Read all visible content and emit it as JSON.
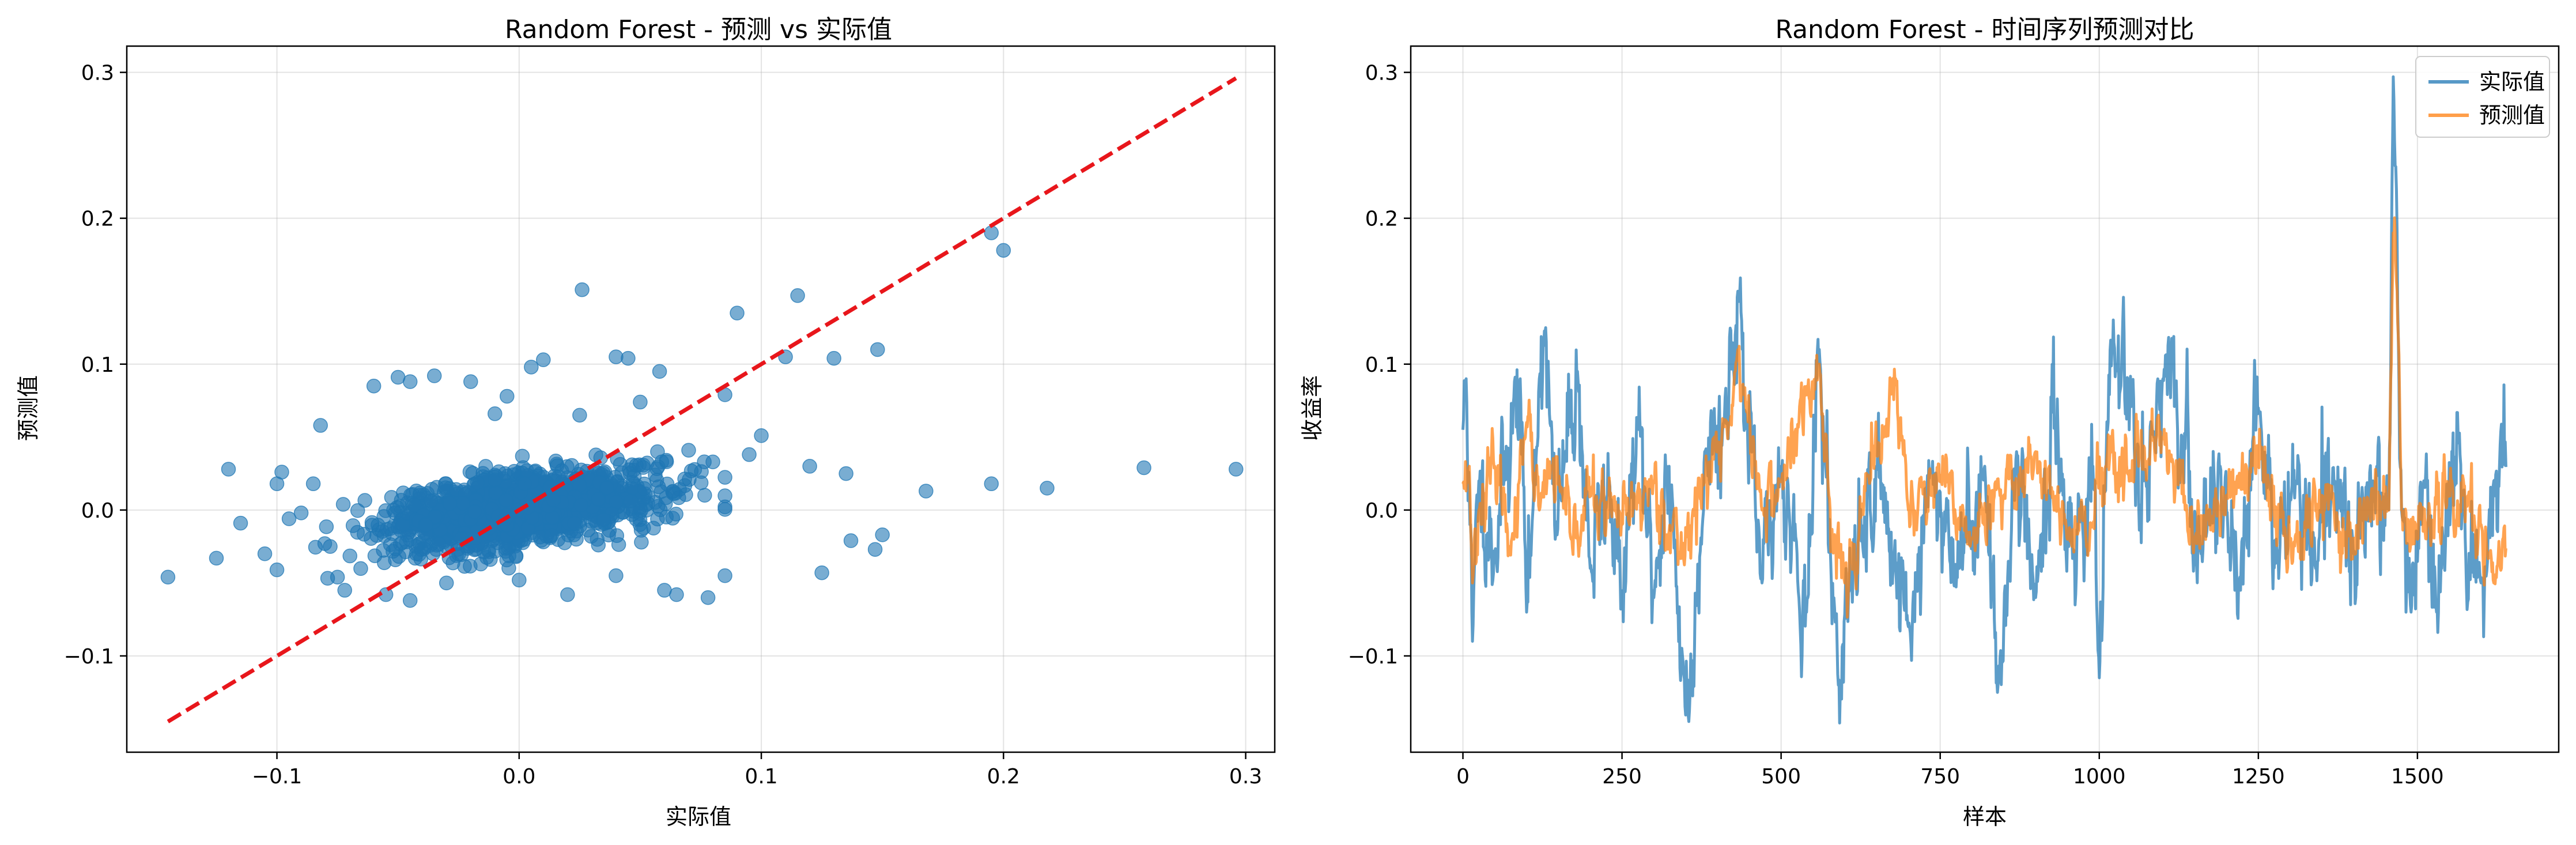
{
  "chart_data": [
    {
      "type": "scatter",
      "title": "Random Forest - 预测 vs 实际值",
      "xlabel": "实际值",
      "ylabel": "预测值",
      "xlim": [
        -0.162,
        0.312
      ],
      "ylim": [
        -0.166,
        0.318
      ],
      "xticks": [
        -0.1,
        0.0,
        0.1,
        0.2,
        0.3
      ],
      "yticks": [
        -0.1,
        0.0,
        0.1,
        0.2,
        0.3
      ],
      "xtick_labels": [
        "−0.1",
        "0.0",
        "0.1",
        "0.2",
        "0.3"
      ],
      "ytick_labels": [
        "−0.1",
        "0.0",
        "0.1",
        "0.2",
        "0.3"
      ],
      "grid": true,
      "point_color": "#1f77b4",
      "reference_line": {
        "from": [
          -0.145,
          -0.145
        ],
        "to": [
          0.296,
          0.296
        ],
        "color": "#e8161b",
        "style": "dashed"
      },
      "outlier_points": [
        [
          -0.145,
          -0.046
        ],
        [
          -0.125,
          -0.033
        ],
        [
          -0.12,
          0.028
        ],
        [
          -0.115,
          -0.009
        ],
        [
          -0.105,
          -0.03
        ],
        [
          -0.1,
          -0.041
        ],
        [
          -0.1,
          0.018
        ],
        [
          -0.098,
          0.026
        ],
        [
          -0.095,
          -0.006
        ],
        [
          -0.09,
          -0.002
        ],
        [
          -0.085,
          0.018
        ],
        [
          -0.082,
          0.058
        ],
        [
          -0.078,
          -0.025
        ],
        [
          -0.075,
          -0.046
        ],
        [
          -0.072,
          -0.055
        ],
        [
          -0.06,
          0.085
        ],
        [
          -0.05,
          0.091
        ],
        [
          -0.045,
          0.088
        ],
        [
          -0.035,
          0.092
        ],
        [
          -0.02,
          0.088
        ],
        [
          -0.005,
          0.078
        ],
        [
          0.005,
          0.098
        ],
        [
          0.01,
          0.103
        ],
        [
          0.026,
          0.151
        ],
        [
          0.04,
          0.105
        ],
        [
          0.045,
          0.104
        ],
        [
          0.058,
          0.095
        ],
        [
          0.09,
          0.135
        ],
        [
          0.115,
          0.147
        ],
        [
          0.11,
          0.105
        ],
        [
          0.13,
          0.104
        ],
        [
          0.148,
          0.11
        ],
        [
          0.1,
          0.051
        ],
        [
          0.095,
          0.038
        ],
        [
          0.12,
          0.03
        ],
        [
          0.135,
          0.025
        ],
        [
          0.125,
          -0.043
        ],
        [
          0.137,
          -0.021
        ],
        [
          0.147,
          -0.027
        ],
        [
          0.15,
          -0.017
        ],
        [
          0.168,
          0.013
        ],
        [
          0.195,
          0.018
        ],
        [
          0.218,
          0.015
        ],
        [
          0.258,
          0.029
        ],
        [
          0.296,
          0.028
        ],
        [
          0.195,
          0.19
        ],
        [
          0.2,
          0.178
        ],
        [
          0.085,
          -0.045
        ],
        [
          0.06,
          -0.055
        ],
        [
          0.078,
          -0.06
        ],
        [
          0.065,
          -0.058
        ],
        [
          0.02,
          -0.058
        ],
        [
          -0.045,
          -0.062
        ],
        [
          -0.055,
          -0.058
        ],
        [
          -0.03,
          -0.05
        ],
        [
          0.0,
          -0.048
        ],
        [
          0.04,
          -0.045
        ],
        [
          0.07,
          0.041
        ],
        [
          0.08,
          0.033
        ],
        [
          0.085,
          0.079
        ],
        [
          0.05,
          0.074
        ],
        [
          0.025,
          0.065
        ],
        [
          -0.01,
          0.066
        ]
      ],
      "cloud": {
        "n": 1450,
        "seed": 7,
        "x_mean": 0.0,
        "x_sd": 0.028,
        "slope": 0.22,
        "noise_sd": 0.012
      }
    },
    {
      "type": "line",
      "title": "Random Forest - 时间序列预测对比",
      "xlabel": "样本",
      "ylabel": "收益率",
      "xlim": [
        -82,
        1722
      ],
      "ylim": [
        -0.166,
        0.318
      ],
      "xticks": [
        0,
        250,
        500,
        750,
        1000,
        1250,
        1500
      ],
      "yticks": [
        -0.1,
        0.0,
        0.1,
        0.2,
        0.3
      ],
      "xtick_labels": [
        "0",
        "250",
        "500",
        "750",
        "1000",
        "1250",
        "1500"
      ],
      "ytick_labels": [
        "−0.1",
        "0.0",
        "0.1",
        "0.2",
        "0.3"
      ],
      "grid": true,
      "legend_position": "top-right",
      "series": [
        {
          "name": "实际值",
          "color": "#1f77b4",
          "n": 1640,
          "anchors": [
            [
              0,
              0.055
            ],
            [
              5,
              0.09
            ],
            [
              10,
              0.01
            ],
            [
              15,
              -0.09
            ],
            [
              25,
              0.02
            ],
            [
              50,
              -0.03
            ],
            [
              70,
              0.04
            ],
            [
              90,
              0.09
            ],
            [
              100,
              -0.07
            ],
            [
              110,
              0.0
            ],
            [
              120,
              0.09
            ],
            [
              130,
              0.125
            ],
            [
              145,
              -0.02
            ],
            [
              160,
              0.035
            ],
            [
              180,
              0.095
            ],
            [
              200,
              -0.04
            ],
            [
              230,
              0.02
            ],
            [
              250,
              -0.06
            ],
            [
              275,
              0.06
            ],
            [
              300,
              -0.06
            ],
            [
              320,
              0.03
            ],
            [
              345,
              -0.1
            ],
            [
              355,
              -0.145
            ],
            [
              380,
              0.04
            ],
            [
              410,
              0.06
            ],
            [
              432,
              0.15
            ],
            [
              445,
              0.06
            ],
            [
              470,
              -0.05
            ],
            [
              500,
              0.03
            ],
            [
              540,
              -0.07
            ],
            [
              560,
              0.11
            ],
            [
              570,
              0.03
            ],
            [
              590,
              -0.12
            ],
            [
              610,
              -0.05
            ],
            [
              650,
              0.03
            ],
            [
              700,
              -0.08
            ],
            [
              740,
              0.02
            ],
            [
              780,
              -0.04
            ],
            [
              820,
              0.03
            ],
            [
              840,
              -0.125
            ],
            [
              870,
              0.04
            ],
            [
              900,
              -0.06
            ],
            [
              930,
              0.06
            ],
            [
              960,
              -0.03
            ],
            [
              990,
              0.03
            ],
            [
              1000,
              -0.115
            ],
            [
              1020,
              0.11
            ],
            [
              1045,
              0.09
            ],
            [
              1070,
              0.02
            ],
            [
              1100,
              0.09
            ],
            [
              1130,
              0.05
            ],
            [
              1160,
              -0.03
            ],
            [
              1190,
              0.03
            ],
            [
              1220,
              -0.05
            ],
            [
              1250,
              0.07
            ],
            [
              1280,
              -0.03
            ],
            [
              1310,
              0.02
            ],
            [
              1340,
              -0.04
            ],
            [
              1370,
              0.02
            ],
            [
              1400,
              -0.03
            ],
            [
              1430,
              0.02
            ],
            [
              1455,
              0.0
            ],
            [
              1462,
              0.297
            ],
            [
              1467,
              0.22
            ],
            [
              1475,
              0.0
            ],
            [
              1490,
              -0.07
            ],
            [
              1510,
              0.02
            ],
            [
              1530,
              -0.07
            ],
            [
              1560,
              0.02
            ],
            [
              1600,
              -0.05
            ],
            [
              1620,
              0.02
            ],
            [
              1640,
              0.03
            ]
          ],
          "jitter": 0.024,
          "seed": 11
        },
        {
          "name": "预测值",
          "color": "#ff7f0e",
          "n": 1640,
          "anchors": [
            [
              0,
              0.018
            ],
            [
              10,
              0.03
            ],
            [
              15,
              -0.05
            ],
            [
              25,
              0.0
            ],
            [
              50,
              0.03
            ],
            [
              80,
              -0.02
            ],
            [
              100,
              0.06
            ],
            [
              120,
              0.0
            ],
            [
              140,
              0.03
            ],
            [
              170,
              -0.02
            ],
            [
              200,
              0.01
            ],
            [
              250,
              -0.01
            ],
            [
              300,
              0.02
            ],
            [
              340,
              -0.03
            ],
            [
              380,
              0.02
            ],
            [
              420,
              0.06
            ],
            [
              432,
              0.11
            ],
            [
              445,
              0.07
            ],
            [
              470,
              0.0
            ],
            [
              500,
              0.02
            ],
            [
              560,
              0.1
            ],
            [
              575,
              0.01
            ],
            [
              600,
              -0.05
            ],
            [
              640,
              0.02
            ],
            [
              680,
              0.09
            ],
            [
              700,
              0.0
            ],
            [
              750,
              0.02
            ],
            [
              800,
              -0.02
            ],
            [
              850,
              0.01
            ],
            [
              900,
              0.04
            ],
            [
              950,
              -0.02
            ],
            [
              990,
              -0.01
            ],
            [
              1010,
              0.03
            ],
            [
              1050,
              0.02
            ],
            [
              1100,
              0.05
            ],
            [
              1150,
              -0.02
            ],
            [
              1200,
              0.01
            ],
            [
              1250,
              0.03
            ],
            [
              1300,
              -0.02
            ],
            [
              1350,
              0.01
            ],
            [
              1400,
              -0.02
            ],
            [
              1440,
              0.01
            ],
            [
              1455,
              0.0
            ],
            [
              1462,
              0.19
            ],
            [
              1468,
              0.15
            ],
            [
              1475,
              0.0
            ],
            [
              1500,
              -0.02
            ],
            [
              1550,
              0.01
            ],
            [
              1600,
              -0.01
            ],
            [
              1620,
              -0.05
            ],
            [
              1640,
              -0.025
            ]
          ],
          "jitter": 0.013,
          "seed": 23
        }
      ]
    }
  ]
}
